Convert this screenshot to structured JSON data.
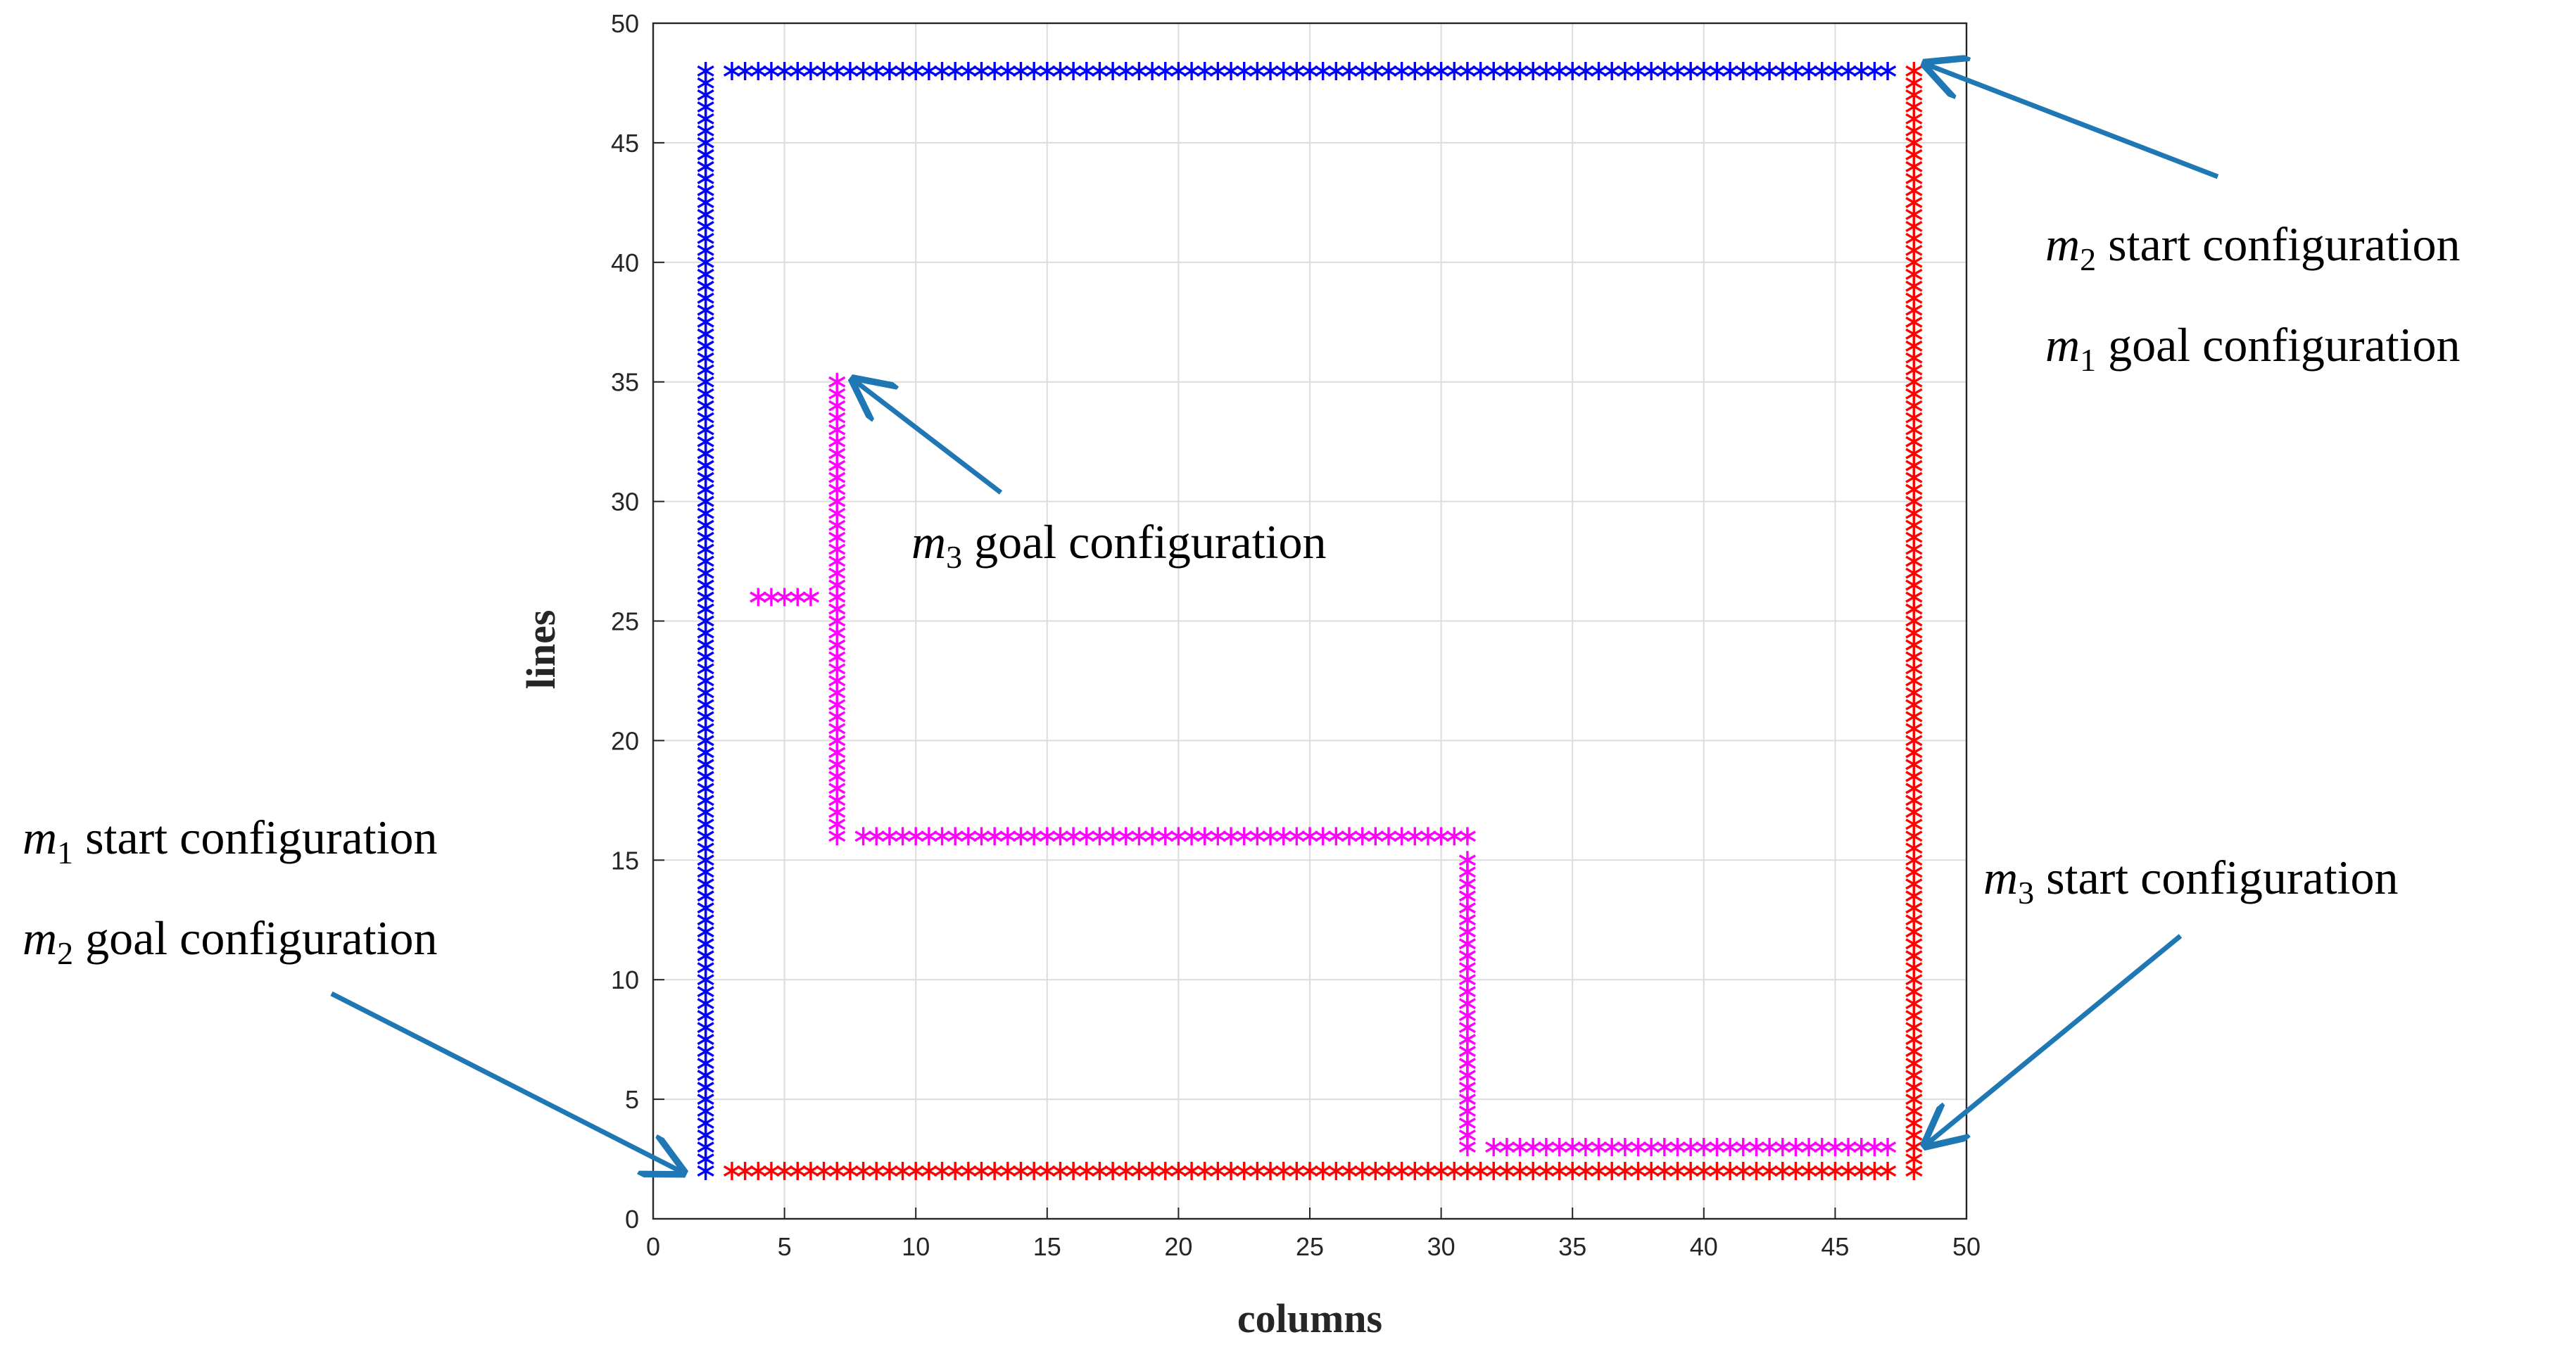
{
  "chart_data": {
    "type": "scatter",
    "title": "",
    "xlabel": "columns",
    "ylabel": "lines",
    "xlim": [
      0,
      50
    ],
    "ylim": [
      0,
      50
    ],
    "xticks": [
      "0",
      "5",
      "10",
      "15",
      "20",
      "25",
      "30",
      "35",
      "40",
      "45",
      "50"
    ],
    "yticks": [
      "0",
      "5",
      "10",
      "15",
      "20",
      "25",
      "30",
      "35",
      "40",
      "45",
      "50"
    ],
    "grid": true,
    "marker": "asterisk",
    "series": [
      {
        "color": "#0000ff",
        "segments": [
          {
            "x": [
              2,
              2
            ],
            "y": [
              2,
              48
            ]
          },
          {
            "x": [
              3,
              47
            ],
            "y": [
              48,
              48
            ]
          }
        ]
      },
      {
        "color": "#ff0000",
        "segments": [
          {
            "x": [
              48,
              48
            ],
            "y": [
              2,
              48
            ]
          },
          {
            "x": [
              3,
              47
            ],
            "y": [
              2,
              2
            ]
          }
        ]
      },
      {
        "color": "#ff00ff",
        "segments": [
          {
            "x": [
              7,
              7
            ],
            "y": [
              16,
              35
            ]
          },
          {
            "x": [
              4,
              6
            ],
            "y": [
              26,
              26
            ]
          },
          {
            "x": [
              8,
              31
            ],
            "y": [
              16,
              16
            ]
          },
          {
            "x": [
              31,
              31
            ],
            "y": [
              3,
              15
            ]
          },
          {
            "x": [
              32,
              47
            ],
            "y": [
              3,
              3
            ]
          }
        ]
      }
    ],
    "annotations": [
      {
        "id": "m2-start",
        "m": "m",
        "sub": "2",
        "text": " start configuration"
      },
      {
        "id": "m1-goal",
        "m": "m",
        "sub": "1",
        "text": " goal configuration"
      },
      {
        "id": "m3-goal",
        "m": "m",
        "sub": "3",
        "text": " goal configuration"
      },
      {
        "id": "m1-start",
        "m": "m",
        "sub": "1",
        "text": " start configuration"
      },
      {
        "id": "m2-goal",
        "m": "m",
        "sub": "2",
        "text": " goal configuration"
      },
      {
        "id": "m3-start",
        "m": "m",
        "sub": "3",
        "text": " start configuration"
      }
    ],
    "arrow_color": "#1f77b4"
  }
}
